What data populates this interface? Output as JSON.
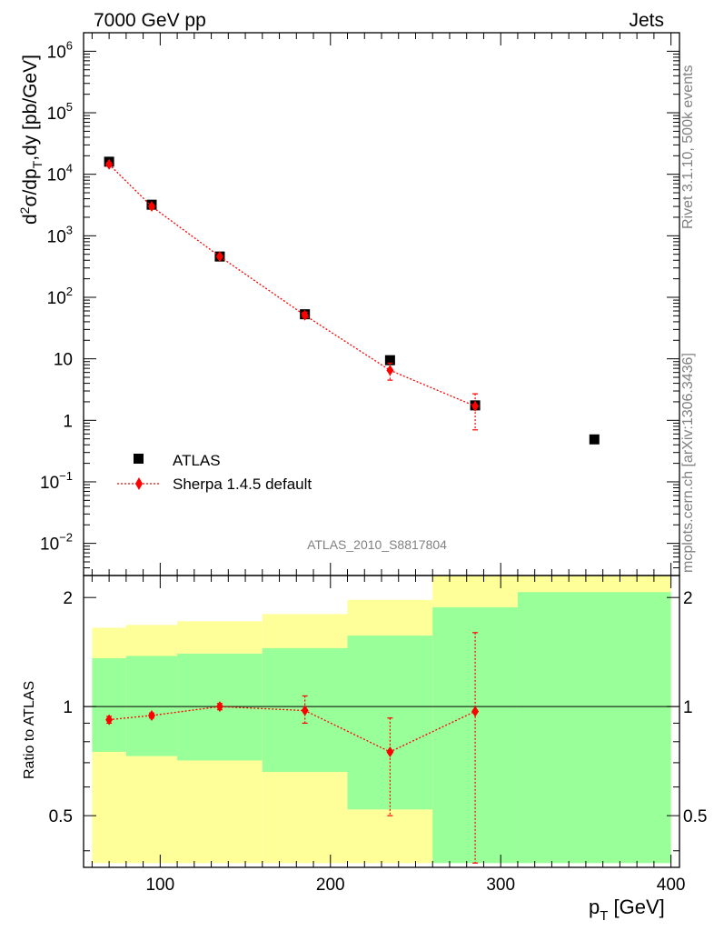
{
  "header": {
    "left": "7000 GeV pp",
    "right": "Jets"
  },
  "side_notes": {
    "top": "Rivet 3.1.10,  500k events",
    "bottom": "mcplots.cern.ch [arXiv:1306.3436]"
  },
  "main_panel": {
    "ylabel": {
      "base": "d",
      "sup": "2",
      "mid": "σ/dp",
      "sub": "T",
      "tail": ",dy [pb/GeV]"
    },
    "analysis_label": "ATLAS_2010_S8817804",
    "ytick_labels": [
      {
        "value": 1000000,
        "base": "10",
        "exp": "6"
      },
      {
        "value": 100000,
        "base": "10",
        "exp": "5"
      },
      {
        "value": 10000,
        "base": "10",
        "exp": "4"
      },
      {
        "value": 1000,
        "base": "10",
        "exp": "3"
      },
      {
        "value": 100,
        "base": "10",
        "exp": "2"
      },
      {
        "value": 10,
        "base": "10",
        "exp": ""
      },
      {
        "value": 1,
        "base": "1",
        "exp": ""
      },
      {
        "value": 0.1,
        "base": "10",
        "exp": "−1"
      },
      {
        "value": 0.01,
        "base": "10",
        "exp": "−2"
      }
    ]
  },
  "ratio_panel": {
    "ylabel": "Ratio to ATLAS",
    "ytick_labels": [
      {
        "value": 2,
        "text": "2"
      },
      {
        "value": 1,
        "text": "1"
      },
      {
        "value": 0.5,
        "text": "0.5"
      }
    ]
  },
  "xaxis": {
    "label_base": "p",
    "label_sub": "T",
    "label_tail": " [GeV]",
    "ticks": [
      100,
      200,
      300,
      400
    ]
  },
  "chart_data": {
    "type": "scatter",
    "x": {
      "range": [
        55,
        405
      ],
      "ticks": [
        100,
        200,
        300,
        400
      ]
    },
    "main_panel": {
      "y_scale": "log",
      "y_range": [
        0.003,
        2000000
      ],
      "series": [
        {
          "name": "ATLAS",
          "color": "#000000",
          "marker": "square",
          "points": [
            {
              "x": 70,
              "y": 16000
            },
            {
              "x": 95,
              "y": 3200
            },
            {
              "x": 135,
              "y": 460
            },
            {
              "x": 185,
              "y": 53
            },
            {
              "x": 235,
              "y": 9.5
            },
            {
              "x": 285,
              "y": 1.75
            },
            {
              "x": 355,
              "y": 0.49
            }
          ]
        },
        {
          "name": "Sherpa 1.4.5 default",
          "color": "#ff0000",
          "marker": "diamond",
          "line": "dotted",
          "points": [
            {
              "x": 70,
              "y": 14500,
              "err_lo": 13500,
              "err_hi": 15500
            },
            {
              "x": 95,
              "y": 3000,
              "err_lo": 2800,
              "err_hi": 3200
            },
            {
              "x": 135,
              "y": 460,
              "err_lo": 430,
              "err_hi": 490
            },
            {
              "x": 185,
              "y": 51,
              "err_lo": 47,
              "err_hi": 57
            },
            {
              "x": 235,
              "y": 6.5,
              "err_lo": 4.5,
              "err_hi": 8.5
            },
            {
              "x": 285,
              "y": 1.7,
              "err_lo": 0.7,
              "err_hi": 2.7
            }
          ]
        }
      ]
    },
    "ratio_panel": {
      "y_scale": "log",
      "y_range": [
        0.36,
        2.3
      ],
      "reference_line": 1,
      "bands": [
        {
          "x0": 60,
          "x1": 80,
          "yellow": [
            0.37,
            1.65
          ],
          "green": [
            0.75,
            1.36
          ]
        },
        {
          "x0": 80,
          "x1": 110,
          "yellow": [
            0.37,
            1.68
          ],
          "green": [
            0.73,
            1.38
          ]
        },
        {
          "x0": 110,
          "x1": 160,
          "yellow": [
            0.37,
            1.72
          ],
          "green": [
            0.71,
            1.4
          ]
        },
        {
          "x0": 160,
          "x1": 210,
          "yellow": [
            0.37,
            1.8
          ],
          "green": [
            0.66,
            1.45
          ]
        },
        {
          "x0": 210,
          "x1": 260,
          "yellow": [
            0.37,
            1.97
          ],
          "green": [
            0.52,
            1.57
          ]
        },
        {
          "x0": 260,
          "x1": 310,
          "yellow": [
            0.37,
            2.3
          ],
          "green": [
            0.37,
            1.88
          ]
        },
        {
          "x0": 310,
          "x1": 400,
          "yellow": [
            0.37,
            2.3
          ],
          "green": [
            0.37,
            2.07
          ]
        }
      ],
      "series": [
        {
          "name": "Sherpa 1.4.5 default",
          "color": "#ff0000",
          "marker": "diamond",
          "line": "dotted",
          "points": [
            {
              "x": 70,
              "y": 0.92,
              "err_lo": 0.9,
              "err_hi": 0.94
            },
            {
              "x": 95,
              "y": 0.945,
              "err_lo": 0.93,
              "err_hi": 0.96
            },
            {
              "x": 135,
              "y": 1.0,
              "err_lo": 0.98,
              "err_hi": 1.02
            },
            {
              "x": 185,
              "y": 0.975,
              "err_lo": 0.9,
              "err_hi": 1.07
            },
            {
              "x": 235,
              "y": 0.75,
              "err_lo": 0.5,
              "err_hi": 0.93
            },
            {
              "x": 285,
              "y": 0.97,
              "err_lo": 0.37,
              "err_hi": 1.6
            }
          ]
        }
      ]
    },
    "colors": {
      "band_inner": "#99ff99",
      "band_outer": "#ffff99",
      "mc": "#ff0000",
      "data": "#000000",
      "side_text": "#808080"
    }
  }
}
